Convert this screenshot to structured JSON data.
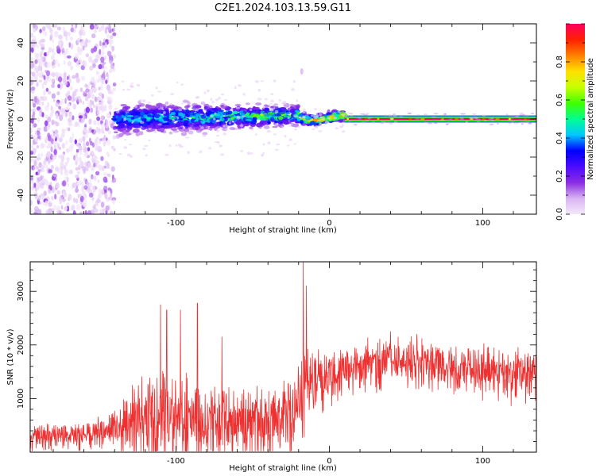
{
  "title": "C2E1.2024.103.13.59.G11",
  "chart_data": [
    {
      "type": "heatmap",
      "xlabel": "Height of straight line (km)",
      "ylabel": "Frequency (Hz)",
      "xlim": [
        -195,
        135
      ],
      "ylim": [
        -50,
        50
      ],
      "xticks": [
        -100,
        0,
        100
      ],
      "yticks": [
        -40,
        -20,
        0,
        20,
        40
      ],
      "grid": false,
      "colorbar": {
        "label": "Normalized spectral amplitude",
        "range": [
          0,
          1
        ],
        "ticks": [
          "0.0",
          "0.2",
          "0.4",
          "0.6",
          "0.8"
        ],
        "colormap": [
          "#f4e8fa",
          "#d8b4f2",
          "#8a2be2",
          "#4b0bff",
          "#0000ff",
          "#00c8ff",
          "#00ff90",
          "#40ff00",
          "#c8ff00",
          "#ffe000",
          "#ff8000",
          "#ff2000",
          "#ff0060"
        ]
      },
      "regions": [
        {
          "x": [
            -195,
            -140
          ],
          "freq_spread_hz": 50,
          "peak_amplitude": 0.15
        },
        {
          "x": [
            -140,
            -20
          ],
          "freq_spread_hz": 12,
          "peak_amplitude": 0.5
        },
        {
          "x": [
            -20,
            10
          ],
          "freq_spread_hz": 4,
          "peak_amplitude": 0.75
        },
        {
          "x": [
            10,
            135
          ],
          "freq_spread_hz": 1,
          "peak_amplitude": 1.0
        }
      ],
      "features": [
        {
          "x": -18,
          "freq": 25,
          "label": ""
        }
      ]
    },
    {
      "type": "line",
      "xlabel": "Height of straight line (km)",
      "ylabel": "SNR (10 * v/v)",
      "xlim": [
        -195,
        135
      ],
      "ylim": [
        0,
        3550
      ],
      "xticks": [
        -100,
        0,
        100
      ],
      "yticks": [
        1000,
        2000,
        3000
      ],
      "grid": false,
      "series": [
        {
          "color": "#ee3030",
          "x": [
            -195,
            -180,
            -160,
            -145,
            -140,
            -130,
            -120,
            -105,
            -95,
            -90,
            -80,
            -60,
            -40,
            -25,
            -20,
            -18,
            -17,
            -15,
            -10,
            0,
            10,
            20,
            40,
            60,
            80,
            100,
            120,
            135
          ],
          "mean": [
            300,
            330,
            350,
            440,
            500,
            620,
            700,
            760,
            700,
            650,
            620,
            580,
            560,
            700,
            1000,
            1200,
            1400,
            1300,
            1400,
            1450,
            1550,
            1650,
            1700,
            1680,
            1600,
            1550,
            1450,
            1500
          ],
          "spread": [
            250,
            250,
            280,
            300,
            500,
            700,
            900,
            1100,
            1000,
            900,
            800,
            700,
            700,
            800,
            900,
            1000,
            1100,
            1000,
            700,
            500,
            500,
            500,
            500,
            500,
            450,
            500,
            550,
            500
          ],
          "peaks": [
            {
              "x": -110,
              "y": 2750
            },
            {
              "x": -106,
              "y": 2650
            },
            {
              "x": -97,
              "y": 2650
            },
            {
              "x": -86,
              "y": 2780
            },
            {
              "x": -70,
              "y": 2150
            },
            {
              "x": -17,
              "y": 3550
            },
            {
              "x": -15,
              "y": 3100
            },
            {
              "x": 40,
              "y": 2250
            },
            {
              "x": 57,
              "y": 2200
            }
          ]
        }
      ]
    }
  ]
}
